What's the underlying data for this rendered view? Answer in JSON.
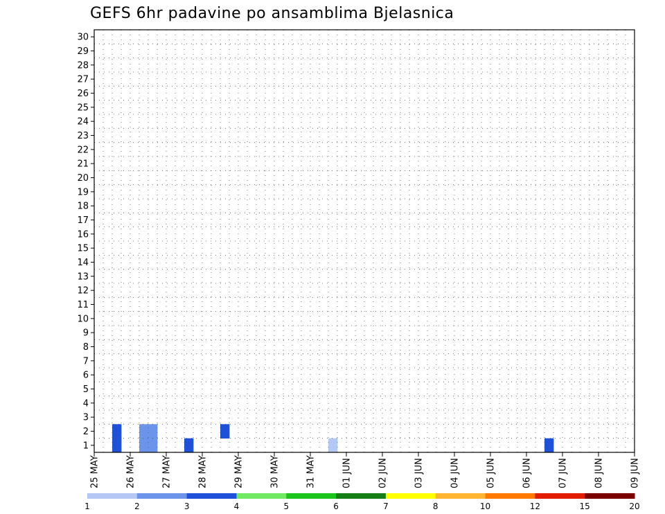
{
  "chart_data": {
    "type": "heatmap",
    "title": "GEFS 6hr padavine po ansamblima Bjelasnica",
    "xlabel": "",
    "ylabel": "",
    "x_ticks": [
      "25 MAY",
      "26 MAY",
      "27 MAY",
      "28 MAY",
      "29 MAY",
      "30 MAY",
      "31 MAY",
      "01 JUN",
      "02 JUN",
      "03 JUN",
      "04 JUN",
      "05 JUN",
      "06 JUN",
      "07 JUN",
      "08 JUN",
      "09 JUN"
    ],
    "y_ticks": [
      "1",
      "2",
      "3",
      "4",
      "5",
      "6",
      "7",
      "8",
      "9",
      "10",
      "11",
      "12",
      "13",
      "14",
      "15",
      "16",
      "17",
      "18",
      "19",
      "20",
      "21",
      "22",
      "23",
      "24",
      "25",
      "26",
      "27",
      "28",
      "29",
      "30"
    ],
    "ylim": [
      0.5,
      30.5
    ],
    "time_steps_per_day": 4,
    "grid": "dotted",
    "colorbar": {
      "labels": [
        "1",
        "2",
        "3",
        "4",
        "5",
        "6",
        "7",
        "8",
        "10",
        "12",
        "15",
        "20"
      ],
      "colors": [
        "#b4c8f5",
        "#6b94ea",
        "#1f50d8",
        "#70ea62",
        "#1cc51c",
        "#157f15",
        "#ffff00",
        "#ffb432",
        "#ff7800",
        "#e11c00",
        "#7a0000"
      ]
    },
    "values_note": "precipitation class index per ensemble member (row) and 6-hour time step (column)",
    "member_values": [
      [
        0,
        0,
        3,
        0,
        0,
        2,
        2,
        0,
        0,
        0,
        3,
        0,
        0,
        0,
        0,
        0,
        0,
        0,
        0,
        0,
        0,
        0,
        0,
        0,
        0,
        0,
        1,
        0,
        0,
        0,
        0,
        0,
        0,
        0,
        0,
        0,
        0,
        0,
        0,
        0,
        0,
        0,
        0,
        0,
        0,
        0,
        0,
        0,
        0,
        0,
        3,
        0,
        0,
        0,
        0,
        0,
        0,
        0,
        0,
        0
      ],
      [
        0,
        0,
        3,
        0,
        0,
        2,
        2,
        0,
        0,
        0,
        0,
        0,
        0,
        0,
        3,
        0,
        0,
        0,
        0,
        0,
        0,
        0,
        0,
        0,
        0,
        0,
        0,
        0,
        0,
        0,
        0,
        0,
        0,
        0,
        0,
        0,
        0,
        0,
        0,
        0,
        0,
        0,
        0,
        0,
        0,
        0,
        0,
        0,
        0,
        0,
        0,
        0,
        0,
        0,
        0,
        0,
        0,
        0,
        0,
        0
      ]
    ]
  },
  "colors": {
    "c1": "#b4c8f5",
    "c2": "#6b94ea",
    "c3": "#1f50d8",
    "c4": "#70ea62",
    "c5": "#1cc51c",
    "c6": "#157f15",
    "c7": "#ffff00",
    "c8": "#ffb432",
    "c10": "#ff7800",
    "c12": "#e11c00",
    "c15": "#7a0000"
  }
}
